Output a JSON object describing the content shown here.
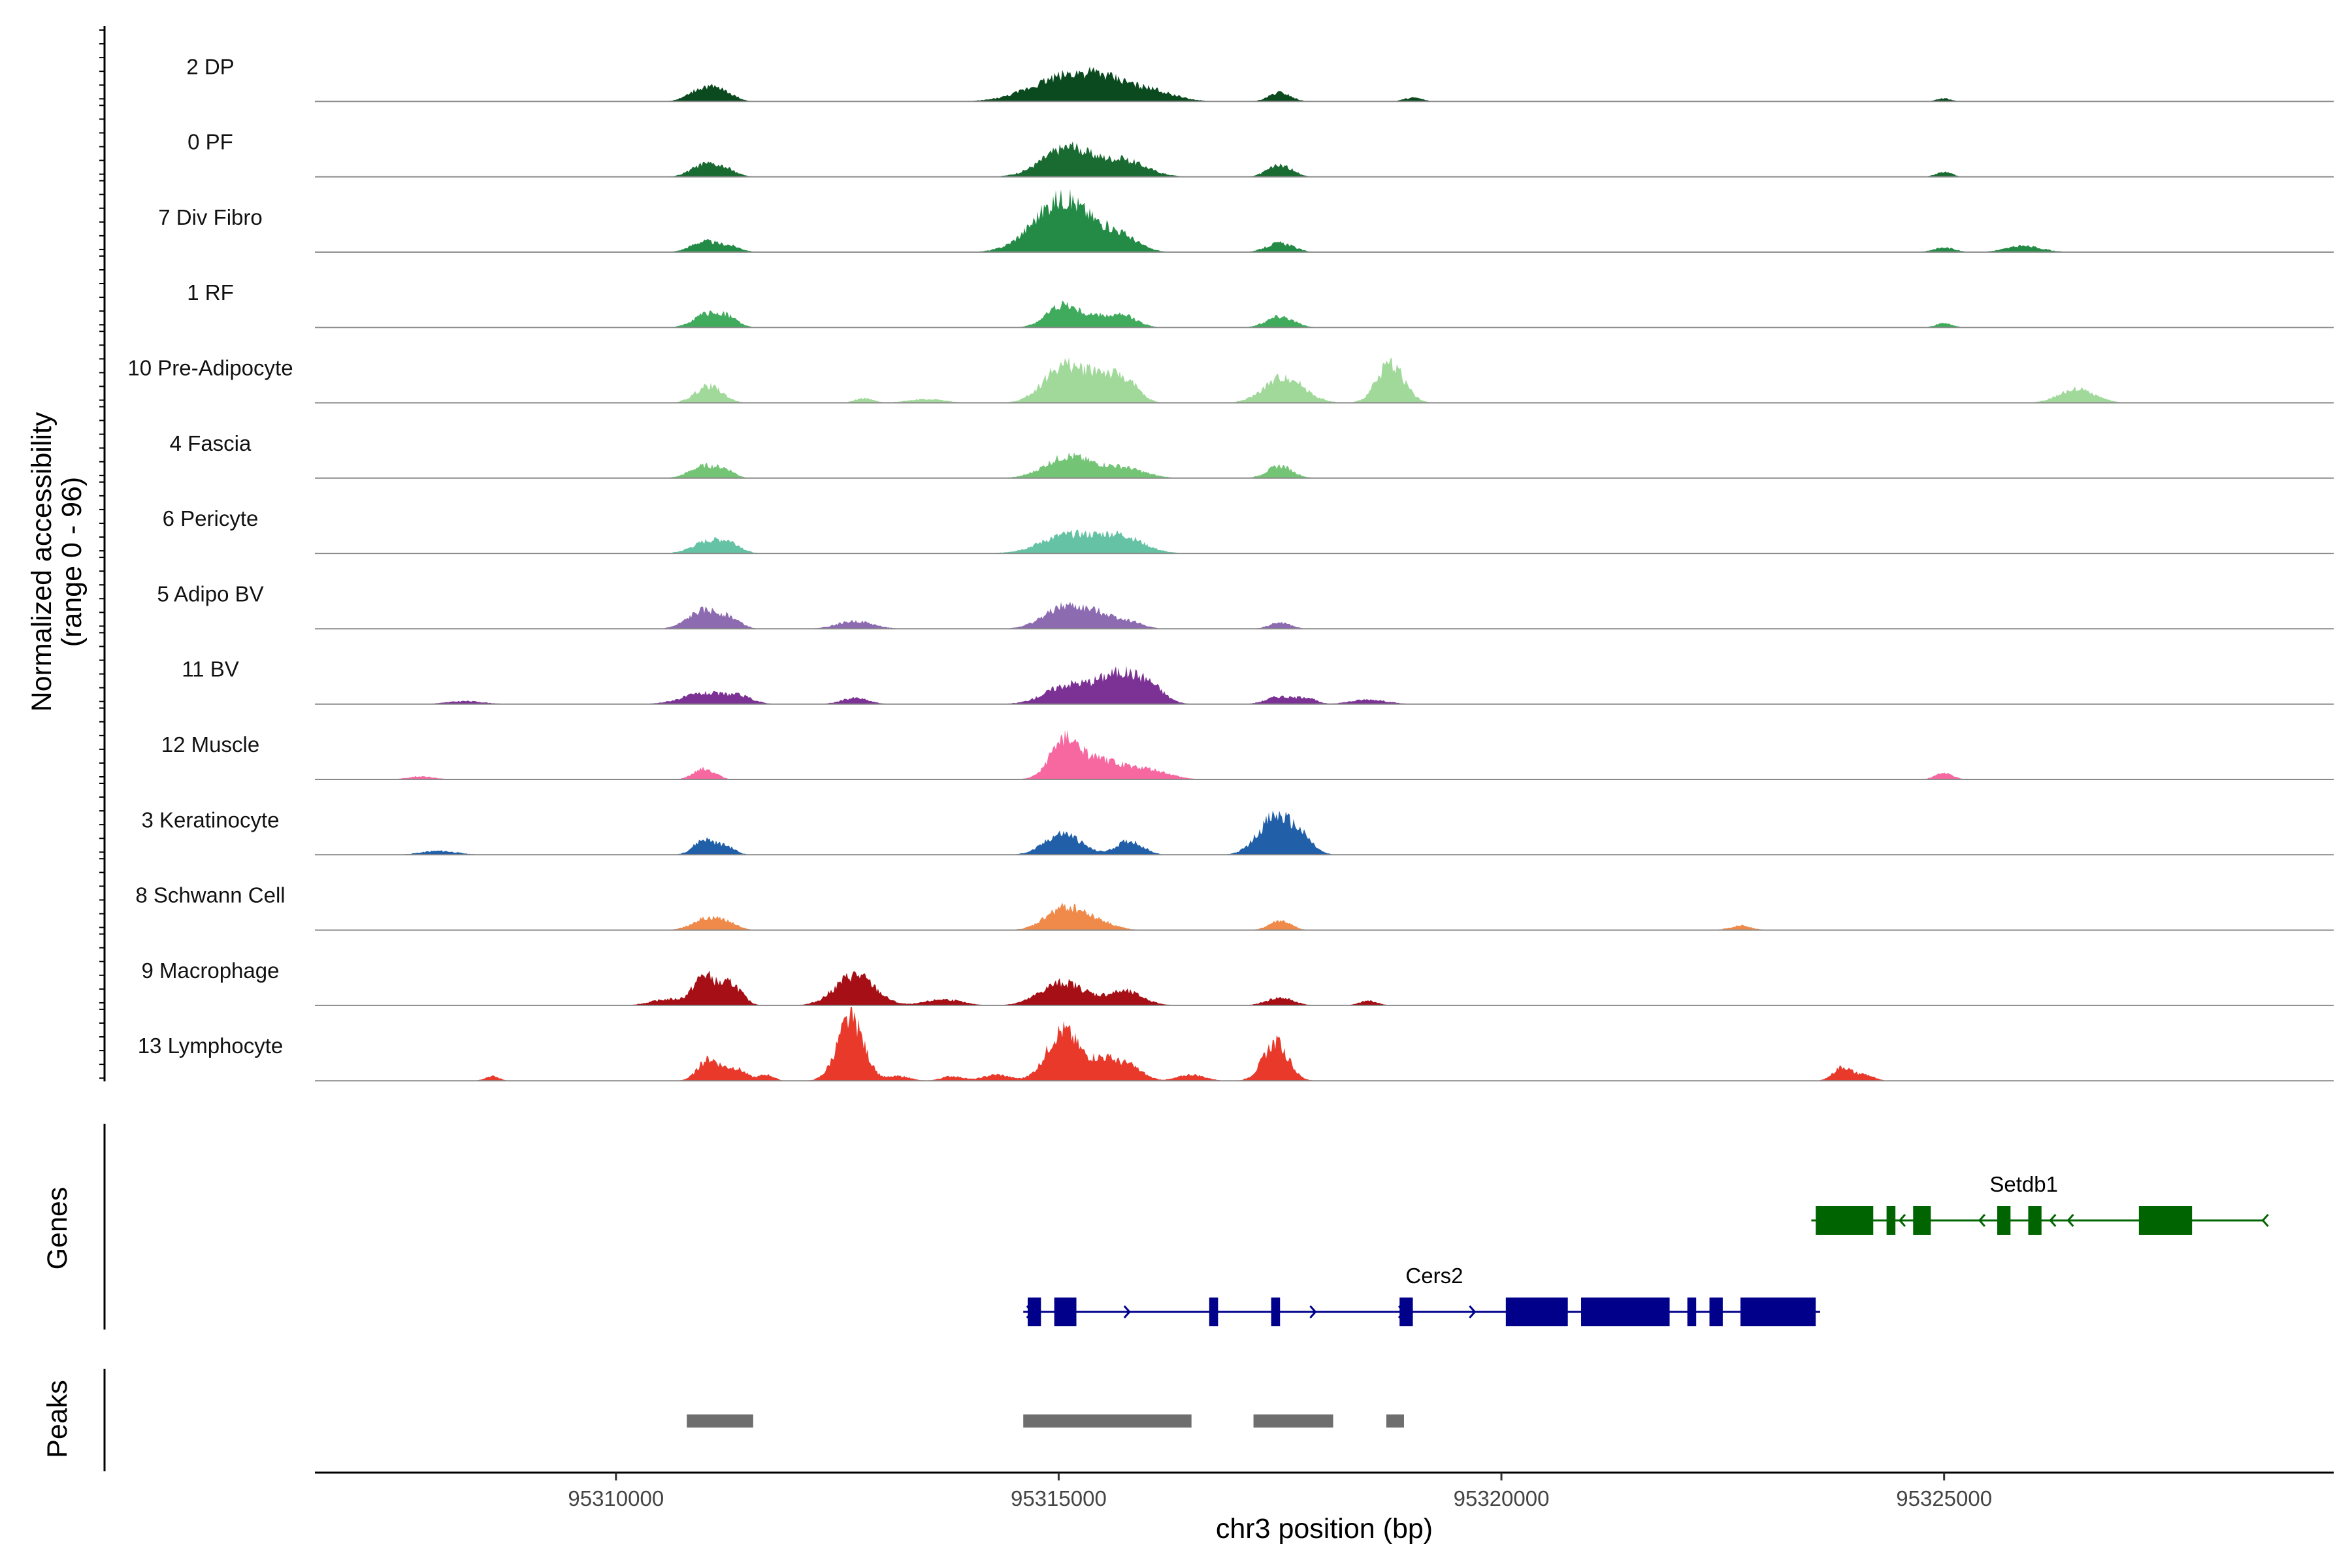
{
  "chart_data": {
    "type": "area",
    "title": "",
    "xlabel": "chr3 position (bp)",
    "ylabel": "Normalized accessibility (range 0 - 96)",
    "ylabel_lines": [
      "Normalized accessibility",
      "(range 0 - 96)"
    ],
    "xlim": [
      95306600,
      95329400
    ],
    "x_ticks": [
      95310000,
      95315000,
      95320000,
      95325000
    ],
    "x_tick_labels": [
      "95310000",
      "95315000",
      "95320000",
      "95325000"
    ],
    "y_range": [
      0,
      96
    ],
    "panel_labels": {
      "genes": "Genes",
      "peaks": "Peaks"
    },
    "series": [
      {
        "name": "2 DP",
        "color": "#0b4a1f",
        "peaks": [
          [
            95311000,
            18,
            160
          ],
          [
            95311250,
            8,
            120
          ],
          [
            95315100,
            32,
            400
          ],
          [
            95315600,
            16,
            300
          ],
          [
            95316100,
            10,
            250
          ],
          [
            95317500,
            12,
            120
          ],
          [
            95319000,
            5,
            100
          ],
          [
            95325000,
            4,
            80
          ]
        ]
      },
      {
        "name": "0 PF",
        "color": "#1a6b32",
        "peaks": [
          [
            95311000,
            16,
            150
          ],
          [
            95311250,
            8,
            120
          ],
          [
            95315100,
            38,
            280
          ],
          [
            95315750,
            20,
            250
          ],
          [
            95317500,
            15,
            140
          ],
          [
            95325000,
            6,
            90
          ]
        ]
      },
      {
        "name": "7 Div Fibro",
        "color": "#238b45",
        "peaks": [
          [
            95311000,
            14,
            150
          ],
          [
            95311300,
            7,
            120
          ],
          [
            95315050,
            70,
            320
          ],
          [
            95315700,
            18,
            200
          ],
          [
            95317500,
            12,
            150
          ],
          [
            95325000,
            6,
            120
          ],
          [
            95325900,
            8,
            200
          ]
        ]
      },
      {
        "name": "1 RF",
        "color": "#41ab5d",
        "peaks": [
          [
            95311000,
            16,
            140
          ],
          [
            95311250,
            14,
            120
          ],
          [
            95315050,
            30,
            180
          ],
          [
            95315450,
            12,
            150
          ],
          [
            95315750,
            14,
            150
          ],
          [
            95317500,
            15,
            150
          ],
          [
            95325000,
            6,
            90
          ]
        ]
      },
      {
        "name": "10 Pre-Adipocyte",
        "color": "#a1d99b",
        "peaks": [
          [
            95311050,
            22,
            150
          ],
          [
            95315050,
            48,
            220
          ],
          [
            95315450,
            30,
            160
          ],
          [
            95315750,
            28,
            150
          ],
          [
            95317550,
            34,
            220
          ],
          [
            95318750,
            52,
            150
          ],
          [
            95326500,
            18,
            200
          ],
          [
            95312800,
            6,
            100
          ],
          [
            95313500,
            5,
            200
          ]
        ]
      },
      {
        "name": "4 Fascia",
        "color": "#74c476",
        "peaks": [
          [
            95311000,
            16,
            160
          ],
          [
            95311250,
            8,
            100
          ],
          [
            95315100,
            28,
            250
          ],
          [
            95315700,
            14,
            250
          ],
          [
            95317500,
            16,
            140
          ]
        ]
      },
      {
        "name": "6 Pericyte",
        "color": "#66c2a4",
        "peaks": [
          [
            95311050,
            16,
            180
          ],
          [
            95311300,
            10,
            120
          ],
          [
            95315100,
            24,
            300
          ],
          [
            95315700,
            22,
            250
          ]
        ]
      },
      {
        "name": "5 Adipo BV",
        "color": "#8c6bb1",
        "peaks": [
          [
            95311000,
            24,
            180
          ],
          [
            95311300,
            10,
            120
          ],
          [
            95312700,
            10,
            200
          ],
          [
            95315100,
            30,
            250
          ],
          [
            95315500,
            12,
            150
          ],
          [
            95315800,
            9,
            150
          ],
          [
            95317500,
            8,
            120
          ]
        ]
      },
      {
        "name": "11 BV",
        "color": "#7b3294",
        "peaks": [
          [
            95311000,
            14,
            250
          ],
          [
            95311400,
            8,
            150
          ],
          [
            95312700,
            8,
            150
          ],
          [
            95315100,
            24,
            250
          ],
          [
            95315700,
            40,
            250
          ],
          [
            95316050,
            14,
            150
          ],
          [
            95317500,
            10,
            150
          ],
          [
            95317800,
            8,
            100
          ],
          [
            95318500,
            6,
            200
          ],
          [
            95308300,
            4,
            200
          ]
        ]
      },
      {
        "name": "12 Muscle",
        "color": "#f768a1",
        "peaks": [
          [
            95311000,
            14,
            120
          ],
          [
            95315050,
            40,
            150
          ],
          [
            95315300,
            20,
            250
          ],
          [
            95315700,
            14,
            300
          ],
          [
            95316100,
            6,
            200
          ],
          [
            95325000,
            8,
            100
          ],
          [
            95307800,
            4,
            150
          ]
        ]
      },
      {
        "name": "3 Keratinocyte",
        "color": "#2160a8",
        "peaks": [
          [
            95311000,
            20,
            120
          ],
          [
            95311250,
            10,
            100
          ],
          [
            95315050,
            28,
            200
          ],
          [
            95315800,
            18,
            150
          ],
          [
            95317450,
            50,
            190
          ],
          [
            95317750,
            16,
            130
          ],
          [
            95308000,
            5,
            200
          ]
        ]
      },
      {
        "name": "8 Schwann Cell",
        "color": "#f08a4b",
        "peaks": [
          [
            95311000,
            14,
            150
          ],
          [
            95311250,
            10,
            120
          ],
          [
            95315050,
            28,
            200
          ],
          [
            95315400,
            12,
            200
          ],
          [
            95317500,
            12,
            120
          ],
          [
            95322700,
            6,
            120
          ]
        ]
      },
      {
        "name": "9 Macrophage",
        "color": "#a50f15",
        "peaks": [
          [
            95311000,
            38,
            120
          ],
          [
            95311300,
            28,
            120
          ],
          [
            95312700,
            40,
            220
          ],
          [
            95315050,
            30,
            250
          ],
          [
            95315750,
            18,
            200
          ],
          [
            95317500,
            10,
            150
          ],
          [
            95310600,
            8,
            200
          ],
          [
            95313700,
            8,
            200
          ],
          [
            95318500,
            6,
            100
          ]
        ]
      },
      {
        "name": "13 Lymphocyte",
        "color": "#e8392b",
        "peaks": [
          [
            95311050,
            28,
            120
          ],
          [
            95311350,
            16,
            120
          ],
          [
            95311700,
            8,
            80
          ],
          [
            95312650,
            80,
            150
          ],
          [
            95315050,
            66,
            180
          ],
          [
            95315500,
            26,
            150
          ],
          [
            95315800,
            18,
            150
          ],
          [
            95317450,
            50,
            140
          ],
          [
            95308600,
            6,
            80
          ],
          [
            95313200,
            6,
            120
          ],
          [
            95313800,
            6,
            120
          ],
          [
            95314300,
            8,
            150
          ],
          [
            95316500,
            8,
            150
          ],
          [
            95323850,
            18,
            100
          ],
          [
            95324100,
            8,
            100
          ]
        ]
      }
    ],
    "genes": [
      {
        "name": "Cers2",
        "color": "#00008b",
        "start": 95314600,
        "end": 95323600,
        "strand": "+",
        "row": 2,
        "exons": [
          [
            95314650,
            95314800
          ],
          [
            95314950,
            95315200
          ],
          [
            95316700,
            95316800
          ],
          [
            95317400,
            95317500
          ],
          [
            95318850,
            95319000
          ],
          [
            95320050,
            95320750
          ],
          [
            95320900,
            95321900
          ],
          [
            95322100,
            95322200
          ],
          [
            95322350,
            95322500
          ],
          [
            95322700,
            95323550
          ]
        ],
        "arrows": [
          95314700,
          95315800,
          95316800,
          95317900,
          95318900,
          95319700
        ]
      },
      {
        "name": "Setdb1",
        "color": "#006400",
        "start": 95323500,
        "end": 95328600,
        "strand": "-",
        "row": 1,
        "exons": [
          [
            95323550,
            95324200
          ],
          [
            95324350,
            95324450
          ],
          [
            95324650,
            95324850
          ],
          [
            95325600,
            95325750
          ],
          [
            95325950,
            95326100
          ],
          [
            95327200,
            95327800
          ]
        ],
        "arrows": [
          95324500,
          95325400,
          95326200,
          95326400,
          95328600
        ]
      }
    ],
    "peaks_track": [
      [
        95310800,
        95311550
      ],
      [
        95314600,
        95316500
      ],
      [
        95317200,
        95318100
      ],
      [
        95318700,
        95318900
      ]
    ]
  }
}
